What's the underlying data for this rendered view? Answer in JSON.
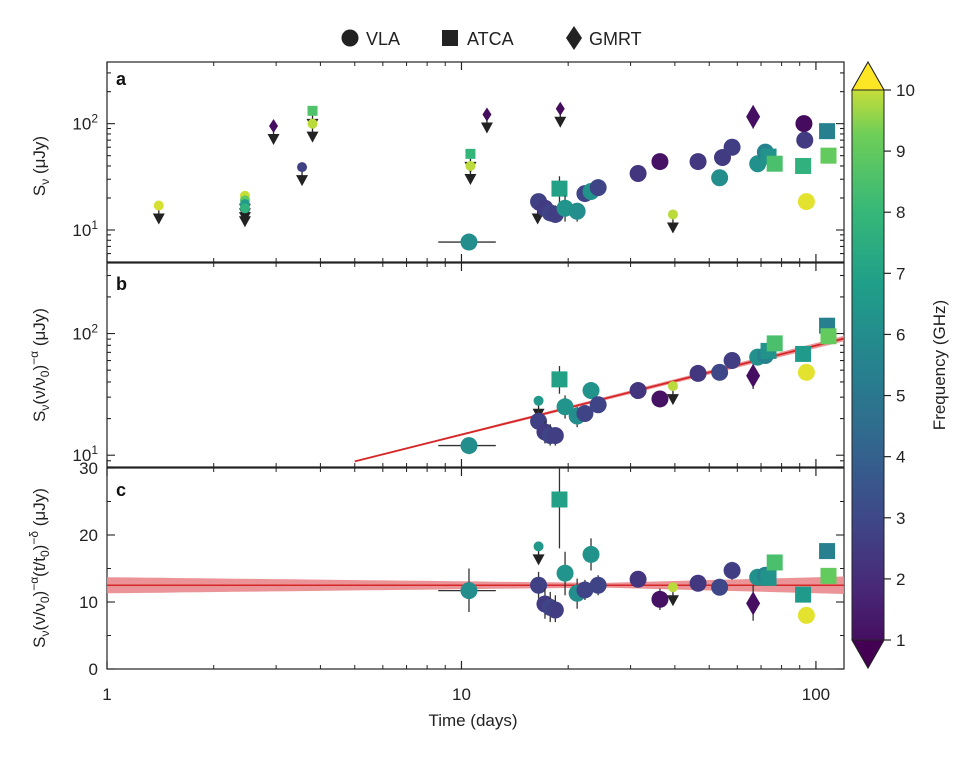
{
  "chart_data": {
    "type": "scatter",
    "title": "",
    "legend": {
      "placement": "top-center",
      "entries": [
        {
          "label": "VLA",
          "marker": "circle"
        },
        {
          "label": "ATCA",
          "marker": "square"
        },
        {
          "label": "GMRT",
          "marker": "diamond"
        }
      ]
    },
    "xlabel": "Time (days)",
    "xscale": "log",
    "xlim": [
      1,
      120
    ],
    "xticks": [
      1,
      10,
      100
    ],
    "xtick_labels": [
      "1",
      "10",
      "100"
    ],
    "colorbar": {
      "label": "Frequency (GHz)",
      "range": [
        1,
        10
      ],
      "ticks": [
        "1",
        "2",
        "3",
        "4",
        "5",
        "6",
        "7",
        "8",
        "9",
        "10"
      ],
      "colormap": "viridis",
      "extend": "both"
    },
    "panels": [
      {
        "id": "a",
        "ylabel_base": "S",
        "ylabel_sub": "ν",
        "ylabel_rest": " (μJy)",
        "yscale": "log",
        "ylim": [
          5,
          380
        ],
        "yticks": [
          10,
          100
        ],
        "ytick_labels": [
          [
            "10",
            "1"
          ],
          [
            "10",
            "2"
          ]
        ],
        "points": [
          {
            "t": 1.4,
            "v": 17,
            "f": 9.7,
            "m": "c",
            "up": 1,
            "s": 1
          },
          {
            "t": 2.45,
            "v": 21,
            "f": 9.6,
            "m": "c",
            "up": 1,
            "s": 1
          },
          {
            "t": 2.45,
            "v": 19,
            "f": 8.6,
            "m": "c",
            "up": 1,
            "s": 1
          },
          {
            "t": 2.45,
            "v": 17.5,
            "f": 6.5,
            "m": "c",
            "up": 1,
            "s": 1
          },
          {
            "t": 2.45,
            "v": 16,
            "f": 7.5,
            "m": "c",
            "up": 1,
            "s": 1
          },
          {
            "t": 2.95,
            "v": 95,
            "f": 1.4,
            "m": "d",
            "up": 1,
            "s": 1
          },
          {
            "t": 3.55,
            "v": 39,
            "f": 3.0,
            "m": "c",
            "up": 1,
            "s": 1
          },
          {
            "t": 3.8,
            "v": 132,
            "f": 8.3,
            "m": "s",
            "up": 1,
            "s": 1
          },
          {
            "t": 3.8,
            "v": 100,
            "f": 9.5,
            "m": "c",
            "up": 1,
            "s": 1
          },
          {
            "t": 10.6,
            "v": 52,
            "f": 7.7,
            "m": "s",
            "up": 1,
            "s": 1
          },
          {
            "t": 10.6,
            "v": 40,
            "f": 9.5,
            "m": "c",
            "up": 1,
            "s": 1
          },
          {
            "t": 11.8,
            "v": 122,
            "f": 1.3,
            "m": "d",
            "up": 1,
            "s": 1
          },
          {
            "t": 16.4,
            "v": 17,
            "f": 3.0,
            "m": "c",
            "up": 1,
            "s": 1
          },
          {
            "t": 19.0,
            "v": 138,
            "f": 1.3,
            "m": "d",
            "up": 1,
            "s": 1
          },
          {
            "t": 39.5,
            "v": 14,
            "f": 9.5,
            "m": "c",
            "up": 1,
            "s": 1
          },
          {
            "t": 10.5,
            "v": 7.7,
            "f": 6.0,
            "m": "c",
            "xerr": [
              8.6,
              12.5
            ],
            "yerr": [
              7.1,
              8.6
            ]
          },
          {
            "t": 16.5,
            "v": 18.5,
            "f": 3.0,
            "m": "c",
            "yerr": [
              15,
              22
            ]
          },
          {
            "t": 17.2,
            "v": 16,
            "f": 2.8,
            "m": "c",
            "yerr": [
              13,
              19
            ]
          },
          {
            "t": 17.8,
            "v": 14.5,
            "f": 3.1,
            "m": "c",
            "yerr": [
              12,
              17
            ]
          },
          {
            "t": 18.4,
            "v": 14,
            "f": 2.9,
            "m": "c",
            "yerr": [
              12,
              17
            ]
          },
          {
            "t": 18.9,
            "v": 24.5,
            "f": 6.8,
            "m": "s",
            "yerr": [
              17,
              32
            ]
          },
          {
            "t": 19.6,
            "v": 16,
            "f": 6.3,
            "m": "c",
            "yerr": [
              12,
              21
            ]
          },
          {
            "t": 21.2,
            "v": 15,
            "f": 6.0,
            "m": "c",
            "yerr": [
              12,
              18
            ]
          },
          {
            "t": 22.3,
            "v": 22,
            "f": 3.1,
            "m": "c",
            "yerr": [
              19,
              25
            ]
          },
          {
            "t": 23.2,
            "v": 23,
            "f": 6.2,
            "m": "c",
            "yerr": [
              20,
              27
            ]
          },
          {
            "t": 24.3,
            "v": 25,
            "f": 3.1,
            "m": "c",
            "yerr": [
              22,
              28
            ]
          },
          {
            "t": 31.5,
            "v": 34,
            "f": 2.6,
            "m": "c"
          },
          {
            "t": 36.3,
            "v": 44,
            "f": 1.5,
            "m": "c",
            "yerr": [
              38,
              51
            ]
          },
          {
            "t": 46.5,
            "v": 44,
            "f": 2.7,
            "m": "c"
          },
          {
            "t": 53.5,
            "v": 31,
            "f": 6.0,
            "m": "c"
          },
          {
            "t": 54.5,
            "v": 48,
            "f": 2.8,
            "m": "c"
          },
          {
            "t": 58.0,
            "v": 60,
            "f": 2.9,
            "m": "c"
          },
          {
            "t": 66.5,
            "v": 116,
            "f": 1.4,
            "m": "d",
            "yerr": [
              90,
              145
            ]
          },
          {
            "t": 68.5,
            "v": 42,
            "f": 6.1,
            "m": "c"
          },
          {
            "t": 72.0,
            "v": 54,
            "f": 5.5,
            "m": "c"
          },
          {
            "t": 73.5,
            "v": 49,
            "f": 6.2,
            "m": "s"
          },
          {
            "t": 76.5,
            "v": 42,
            "f": 8.2,
            "m": "s"
          },
          {
            "t": 92.5,
            "v": 100,
            "f": 1.3,
            "m": "c"
          },
          {
            "t": 93.0,
            "v": 70,
            "f": 2.8,
            "m": "c"
          },
          {
            "t": 92.0,
            "v": 40,
            "f": 7.5,
            "m": "s"
          },
          {
            "t": 94.0,
            "v": 18.5,
            "f": 9.8,
            "m": "c"
          },
          {
            "t": 107.5,
            "v": 85,
            "f": 5.4,
            "m": "s"
          },
          {
            "t": 108.5,
            "v": 50,
            "f": 8.7,
            "m": "s"
          }
        ]
      },
      {
        "id": "b",
        "ylabel_base": "S",
        "ylabel_sub": "ν",
        "ylabel_rest": "(ν/ν",
        "ylabel_sub2": "0",
        "ylabel_rest2": ")",
        "ylabel_sup": "−α",
        "ylabel_end": " (μJy)",
        "yscale": "log",
        "ylim": [
          8,
          380
        ],
        "yticks": [
          10,
          100
        ],
        "ytick_labels": [
          [
            "10",
            "1"
          ],
          [
            "10",
            "2"
          ]
        ],
        "fit": {
          "type": "power-law",
          "points": [
            [
              5,
              8.9
            ],
            [
              120,
              91
            ]
          ],
          "band_low_factor": 0.93,
          "band_high_factor": 1.07
        },
        "points": [
          {
            "t": 16.5,
            "v": 28,
            "f": 6.4,
            "m": "c",
            "up": 1,
            "s": 1
          },
          {
            "t": 39.5,
            "v": 37,
            "f": 9.5,
            "m": "c",
            "up": 1,
            "s": 1
          },
          {
            "t": 10.5,
            "v": 12,
            "f": 6.0,
            "m": "c",
            "xerr": [
              8.6,
              12.5
            ],
            "yerr": [
              10.2,
              14
            ]
          },
          {
            "t": 16.5,
            "v": 19,
            "f": 3.0,
            "m": "c",
            "yerr": [
              15,
              24
            ]
          },
          {
            "t": 17.2,
            "v": 15.5,
            "f": 2.8,
            "m": "c",
            "yerr": [
              12.5,
              19
            ]
          },
          {
            "t": 17.8,
            "v": 14.5,
            "f": 3.1,
            "m": "c",
            "yerr": [
              12,
              18
            ]
          },
          {
            "t": 18.4,
            "v": 14.5,
            "f": 2.9,
            "m": "c",
            "yerr": [
              12,
              17
            ]
          },
          {
            "t": 18.9,
            "v": 42,
            "f": 6.8,
            "m": "s",
            "yerr": [
              32,
              54
            ]
          },
          {
            "t": 19.6,
            "v": 25,
            "f": 6.3,
            "m": "c",
            "yerr": [
              20,
              31
            ]
          },
          {
            "t": 21.2,
            "v": 21,
            "f": 6.0,
            "m": "c",
            "yerr": [
              17,
              25
            ]
          },
          {
            "t": 22.3,
            "v": 22,
            "f": 3.1,
            "m": "c",
            "yerr": [
              19,
              25
            ]
          },
          {
            "t": 23.2,
            "v": 34,
            "f": 6.2,
            "m": "c",
            "yerr": [
              29,
              39
            ]
          },
          {
            "t": 24.3,
            "v": 26,
            "f": 3.1,
            "m": "c",
            "yerr": [
              23,
              29
            ]
          },
          {
            "t": 31.5,
            "v": 34,
            "f": 2.6,
            "m": "c"
          },
          {
            "t": 36.3,
            "v": 29,
            "f": 1.5,
            "m": "c",
            "yerr": [
              25,
              33
            ]
          },
          {
            "t": 46.5,
            "v": 47,
            "f": 2.7,
            "m": "c"
          },
          {
            "t": 53.5,
            "v": 48,
            "f": 3.2,
            "m": "c"
          },
          {
            "t": 58.0,
            "v": 60,
            "f": 2.9,
            "m": "c"
          },
          {
            "t": 66.5,
            "v": 45,
            "f": 1.4,
            "m": "d",
            "yerr": [
              35,
              56
            ]
          },
          {
            "t": 68.5,
            "v": 64,
            "f": 6.1,
            "m": "c"
          },
          {
            "t": 72.0,
            "v": 66,
            "f": 5.5,
            "m": "c"
          },
          {
            "t": 73.5,
            "v": 72,
            "f": 6.2,
            "m": "s"
          },
          {
            "t": 76.5,
            "v": 83,
            "f": 8.2,
            "m": "s"
          },
          {
            "t": 92.0,
            "v": 68,
            "f": 6.5,
            "m": "s"
          },
          {
            "t": 94.0,
            "v": 48,
            "f": 9.8,
            "m": "c"
          },
          {
            "t": 107.5,
            "v": 116,
            "f": 5.4,
            "m": "s"
          },
          {
            "t": 108.5,
            "v": 95,
            "f": 8.7,
            "m": "s"
          }
        ]
      },
      {
        "id": "c",
        "ylabel_base": "S",
        "ylabel_sub": "ν",
        "ylabel_rest": "(ν/ν",
        "ylabel_sub2": "0",
        "ylabel_rest2": ")",
        "ylabel_sup": "−α",
        "ylabel_mid": "(t/t",
        "ylabel_sub3": "0",
        "ylabel_mid2": ")",
        "ylabel_sup2": "−δ",
        "ylabel_end": " (μJy)",
        "yscale": "linear",
        "ylim": [
          0,
          30
        ],
        "yticks": [
          0,
          10,
          20,
          30
        ],
        "ytick_labels": [
          "0",
          "10",
          "20",
          "30"
        ],
        "fit": {
          "type": "flat",
          "points": [
            [
              1,
              12.5
            ],
            [
              120,
              12.5
            ]
          ],
          "band_half_width_left": 1.2,
          "band_half_width_mid": 0.35,
          "band_half_width_right": 1.3
        },
        "points": [
          {
            "t": 16.5,
            "v": 18.3,
            "f": 6.4,
            "m": "c",
            "up": 1,
            "s": 1
          },
          {
            "t": 39.5,
            "v": 12.2,
            "f": 9.5,
            "m": "c",
            "up": 1,
            "s": 1
          },
          {
            "t": 10.5,
            "v": 11.7,
            "f": 6.0,
            "m": "c",
            "xerr": [
              8.6,
              12.5
            ],
            "yerr": [
              8.5,
              15
            ]
          },
          {
            "t": 16.5,
            "v": 12.5,
            "f": 3.0,
            "m": "c",
            "yerr": [
              10.5,
              14.5
            ]
          },
          {
            "t": 17.2,
            "v": 9.7,
            "f": 2.8,
            "m": "c",
            "yerr": [
              7.5,
              12
            ]
          },
          {
            "t": 17.8,
            "v": 9.2,
            "f": 3.1,
            "m": "c",
            "yerr": [
              7,
              11.5
            ]
          },
          {
            "t": 18.4,
            "v": 8.8,
            "f": 2.9,
            "m": "c",
            "yerr": [
              7,
              11
            ]
          },
          {
            "t": 18.9,
            "v": 25.3,
            "f": 6.8,
            "m": "s",
            "yerr": [
              18,
              33
            ]
          },
          {
            "t": 19.6,
            "v": 14.3,
            "f": 6.3,
            "m": "c",
            "yerr": [
              11,
              17.5
            ]
          },
          {
            "t": 21.2,
            "v": 11.3,
            "f": 6.0,
            "m": "c",
            "yerr": [
              9,
              13.5
            ]
          },
          {
            "t": 22.3,
            "v": 11.8,
            "f": 3.1,
            "m": "c",
            "yerr": [
              10.3,
              13.3
            ]
          },
          {
            "t": 23.2,
            "v": 17.1,
            "f": 6.2,
            "m": "c",
            "yerr": [
              14.7,
              19.5
            ]
          },
          {
            "t": 24.3,
            "v": 12.5,
            "f": 3.1,
            "m": "c",
            "yerr": [
              11,
              14
            ]
          },
          {
            "t": 31.5,
            "v": 13.4,
            "f": 2.6,
            "m": "c",
            "yerr": [
              12.4,
              14.4
            ]
          },
          {
            "t": 36.3,
            "v": 10.4,
            "f": 1.5,
            "m": "c",
            "yerr": [
              8.8,
              12
            ]
          },
          {
            "t": 46.5,
            "v": 12.8,
            "f": 2.7,
            "m": "c"
          },
          {
            "t": 53.5,
            "v": 12.2,
            "f": 3.2,
            "m": "c",
            "yerr": [
              11,
              13.4
            ]
          },
          {
            "t": 58.0,
            "v": 14.7,
            "f": 2.9,
            "m": "c",
            "yerr": [
              13.3,
              16
            ]
          },
          {
            "t": 66.5,
            "v": 9.8,
            "f": 1.4,
            "m": "d",
            "yerr": [
              7.2,
              12.5
            ]
          },
          {
            "t": 68.5,
            "v": 13.7,
            "f": 6.1,
            "m": "c"
          },
          {
            "t": 72.0,
            "v": 14.0,
            "f": 5.5,
            "m": "c"
          },
          {
            "t": 73.5,
            "v": 13.6,
            "f": 6.2,
            "m": "s"
          },
          {
            "t": 76.5,
            "v": 15.9,
            "f": 8.2,
            "m": "s"
          },
          {
            "t": 92.0,
            "v": 11.1,
            "f": 6.5,
            "m": "s"
          },
          {
            "t": 94.0,
            "v": 8.0,
            "f": 9.8,
            "m": "c"
          },
          {
            "t": 107.5,
            "v": 17.6,
            "f": 5.4,
            "m": "s"
          },
          {
            "t": 108.5,
            "v": 13.9,
            "f": 8.7,
            "m": "s"
          }
        ]
      }
    ]
  },
  "colors": {
    "fit_line": "#d62728",
    "fit_band": "#e9878c",
    "frame": "#222222",
    "upper_limit_arrow": "#222222"
  }
}
